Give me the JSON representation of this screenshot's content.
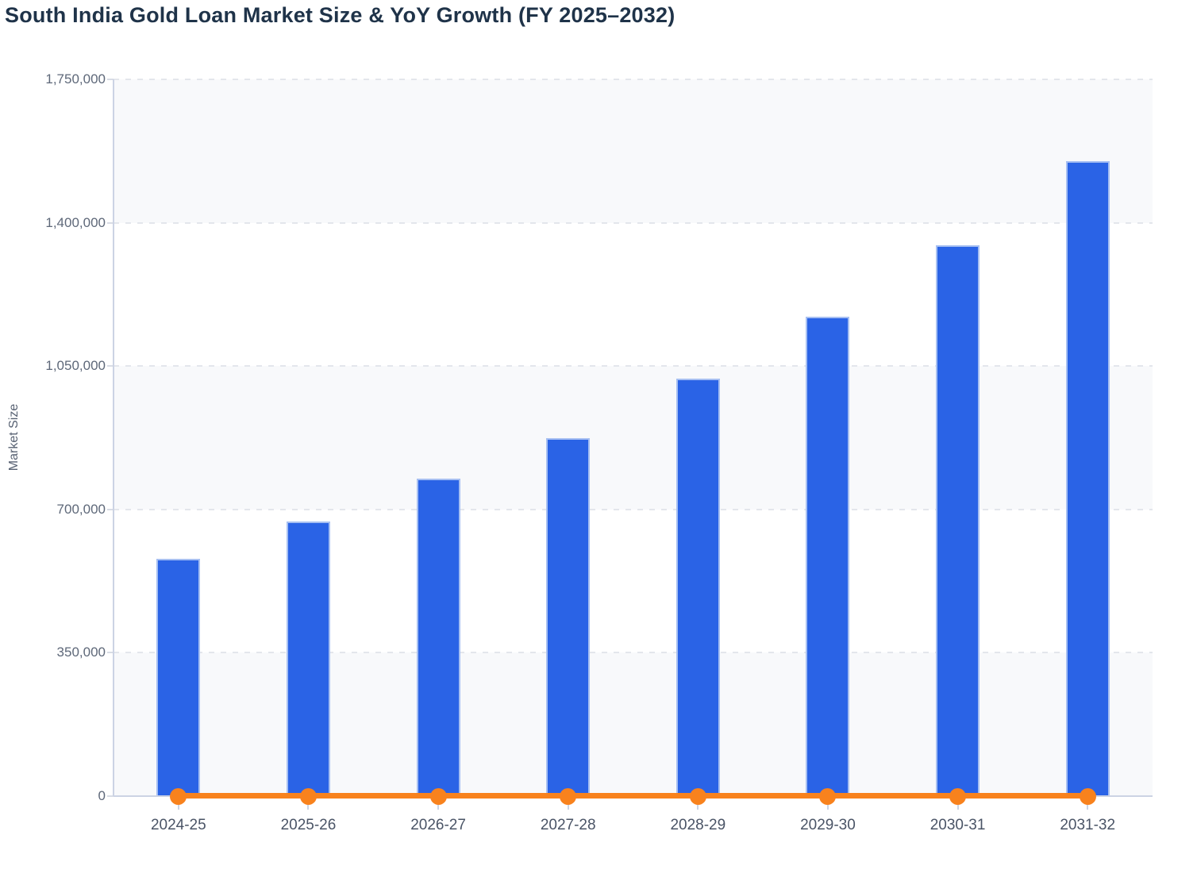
{
  "page": {
    "background": "#ffffff"
  },
  "chart_data": {
    "type": "bar",
    "title": "South India Gold Loan Market Size & YoY Growth (FY 2025–2032)",
    "subtitle": "",
    "xlabel": "",
    "ylabel": "Market Size",
    "categories": [
      "2024-25",
      "2025-26",
      "2026-27",
      "2027-28",
      "2028-29",
      "2029-30",
      "2030-31",
      "2031-32"
    ],
    "series": [
      {
        "name": "Market Size",
        "type": "bar",
        "color": "#2a63e6",
        "border_color": "#a6bff2",
        "values": [
          580000,
          670000,
          775000,
          875000,
          1020000,
          1170000,
          1345000,
          1550000
        ]
      },
      {
        "name": "YoY Growth",
        "type": "line",
        "color": "#f8821d",
        "values": [
          0,
          0,
          0,
          0,
          0,
          0,
          0,
          0
        ]
      }
    ],
    "ylim": [
      0,
      1750000
    ],
    "yticks": [
      0,
      350000,
      700000,
      1050000,
      1400000,
      1750000
    ],
    "ytick_labels": [
      "0",
      "350,000",
      "700,000",
      "1,050,000",
      "1,400,000",
      "1,750,000"
    ],
    "grid": "horizontal-dashed",
    "legend": "none",
    "band_colors": [
      "#f8f9fb",
      "#ffffff"
    ],
    "colors": {
      "title_text": "#1f3349",
      "axis_line": "#ccd3e4",
      "gridline": "#e3e6ec",
      "y_tick_text": "#5e6879",
      "x_tick_text": "#4a5466"
    }
  }
}
